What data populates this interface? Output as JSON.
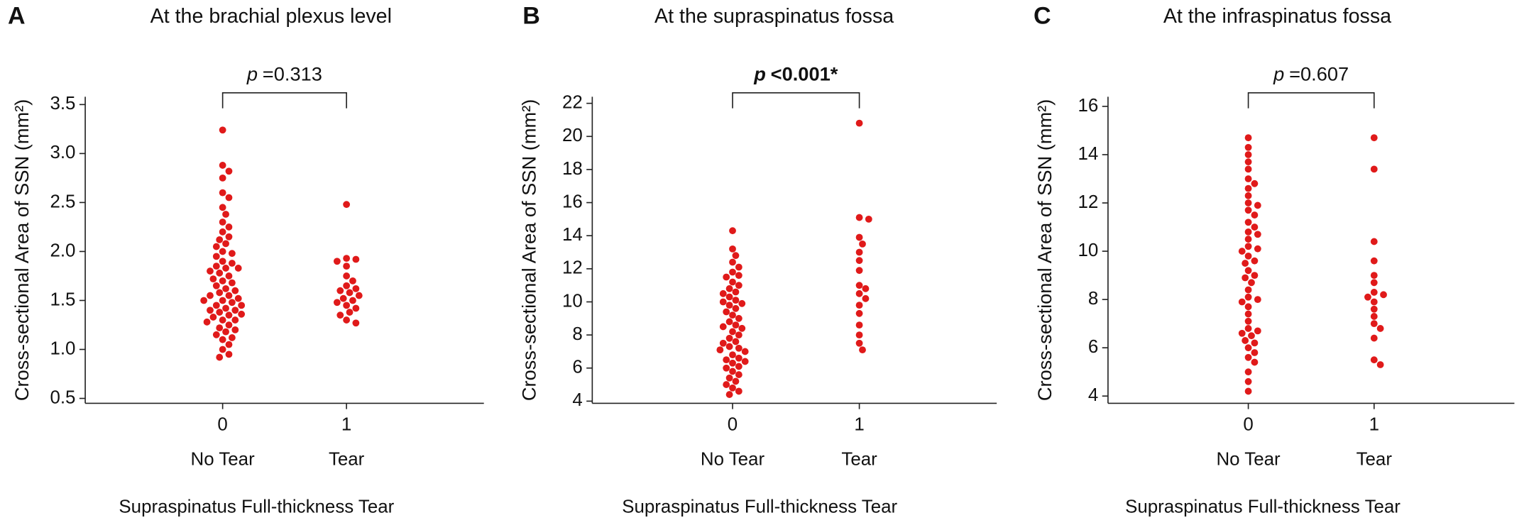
{
  "chart_data": [
    {
      "type": "scatter",
      "panel": "A",
      "title": "At the brachial plexus level",
      "ylabel": "Cross-sectional Area of SSN (mm²)",
      "xlabel": "Supraspinatus Full-thickness Tear",
      "categories": [
        "0",
        "1"
      ],
      "category_labels": [
        "No Tear",
        "Tear"
      ],
      "annotation": {
        "symbol": "p",
        "text": "=0.313",
        "bold": false
      },
      "color": "#e01a1a",
      "ylim": [
        0.45,
        3.58
      ],
      "yticks": [
        0.5,
        {
          "value": 1,
          "label": "1.0"
        },
        1.5,
        {
          "value": 2,
          "label": "2.0"
        },
        2.5,
        {
          "value": 3,
          "label": "3.0"
        },
        3.5
      ],
      "values": [
        [
          3.24,
          2.88,
          2.82,
          2.75,
          2.6,
          2.55,
          2.45,
          2.38,
          2.3,
          2.25,
          2.2,
          2.15,
          2.12,
          2.08,
          2.05,
          2.0,
          1.98,
          1.95,
          1.9,
          1.88,
          1.85,
          1.83,
          1.83,
          1.8,
          1.78,
          1.75,
          1.72,
          1.7,
          1.68,
          1.65,
          1.62,
          1.6,
          1.58,
          1.55,
          1.55,
          1.52,
          1.5,
          1.5,
          1.48,
          1.45,
          1.45,
          1.42,
          1.4,
          1.4,
          1.38,
          1.36,
          1.35,
          1.33,
          1.3,
          1.3,
          1.28,
          1.25,
          1.22,
          1.2,
          1.18,
          1.15,
          1.12,
          1.1,
          1.05,
          1.0,
          0.95,
          0.92
        ],
        [
          2.48,
          1.93,
          1.92,
          1.9,
          1.85,
          1.75,
          1.7,
          1.65,
          1.62,
          1.6,
          1.58,
          1.55,
          1.52,
          1.5,
          1.48,
          1.45,
          1.42,
          1.38,
          1.35,
          1.3,
          1.27
        ]
      ]
    },
    {
      "type": "scatter",
      "panel": "B",
      "title": "At the supraspinatus fossa",
      "ylabel": "Cross-sectional Area of SSN (mm²)",
      "xlabel": "Supraspinatus Full-thickness Tear",
      "categories": [
        "0",
        "1"
      ],
      "category_labels": [
        "No Tear",
        "Tear"
      ],
      "annotation": {
        "symbol": "p",
        "text": "<0.001*",
        "bold": true
      },
      "color": "#e01a1a",
      "ylim": [
        3.87,
        22.4
      ],
      "yticks": [
        4,
        6,
        8,
        10,
        12,
        14,
        16,
        18,
        20,
        22
      ],
      "values": [
        [
          14.3,
          13.2,
          12.8,
          12.4,
          12.1,
          11.8,
          11.5,
          11.2,
          11.0,
          10.8,
          10.5,
          10.3,
          10.1,
          10.0,
          9.8,
          9.6,
          9.4,
          9.2,
          9.0,
          8.8,
          8.6,
          8.4,
          8.2,
          8.0,
          7.8,
          7.6,
          7.5,
          7.3,
          7.1,
          7.0,
          6.8,
          6.6,
          6.5,
          6.3,
          6.1,
          6.0,
          5.8,
          5.6,
          5.4,
          5.2,
          5.0,
          4.8,
          4.6,
          4.4,
          9.9,
          8.5,
          7.2,
          6.4,
          10.6,
          11.6
        ],
        [
          20.8,
          15.1,
          15.0,
          13.9,
          13.5,
          13.0,
          12.5,
          11.9,
          11.0,
          10.8,
          10.5,
          10.2,
          9.8,
          9.3,
          8.6,
          8.0,
          7.5,
          7.1
        ]
      ]
    },
    {
      "type": "scatter",
      "panel": "C",
      "title": "At the infraspinatus fossa",
      "ylabel": "Cross-sectional Area of SSN (mm²)",
      "xlabel": "Supraspinatus Full-thickness Tear",
      "categories": [
        "0",
        "1"
      ],
      "category_labels": [
        "No Tear",
        "Tear"
      ],
      "annotation": {
        "symbol": "p",
        "text": "=0.607",
        "bold": false
      },
      "color": "#e01a1a",
      "ylim": [
        3.7,
        16.4
      ],
      "yticks": [
        4,
        6,
        8,
        10,
        12,
        14,
        16
      ],
      "values": [
        [
          14.7,
          14.3,
          14.0,
          13.7,
          13.4,
          13.0,
          12.6,
          12.3,
          12.0,
          11.7,
          11.5,
          11.2,
          11.0,
          10.8,
          10.5,
          10.2,
          10.0,
          9.8,
          9.5,
          9.2,
          9.0,
          8.7,
          8.4,
          8.1,
          8.0,
          7.7,
          7.4,
          7.1,
          6.8,
          6.6,
          6.5,
          6.3,
          6.0,
          5.8,
          5.6,
          5.4,
          5.0,
          4.6,
          4.2,
          11.9,
          10.7,
          9.6,
          8.9,
          7.9,
          6.7,
          6.2,
          10.1,
          12.8
        ],
        [
          14.7,
          13.4,
          10.4,
          9.6,
          9.0,
          8.7,
          8.3,
          8.2,
          8.1,
          7.9,
          7.6,
          7.3,
          7.0,
          6.8,
          6.4,
          5.5,
          5.3
        ]
      ]
    }
  ]
}
